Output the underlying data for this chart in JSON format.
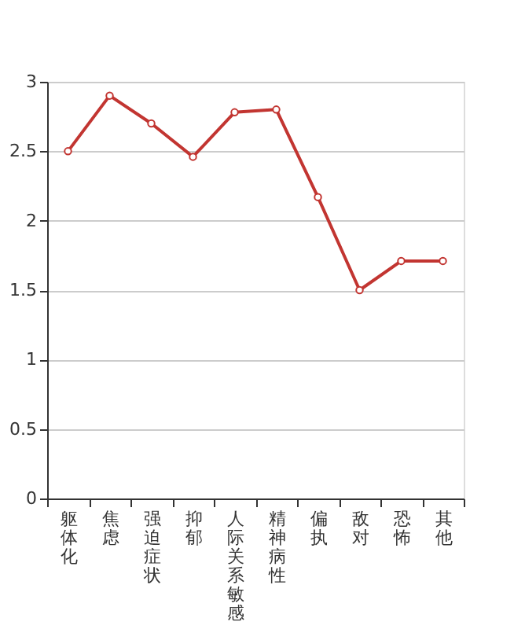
{
  "chart_data": {
    "type": "line",
    "categories": [
      "躯体化",
      "焦虑",
      "强迫症状",
      "抑郁",
      "人际关系敏感",
      "精神病性",
      "偏执",
      "敌对",
      "恐怖",
      "其他"
    ],
    "series": [
      {
        "color": "#c23531",
        "values": [
          2.5,
          2.9,
          2.7,
          2.46,
          2.78,
          2.8,
          2.17,
          1.5,
          1.71,
          1.71
        ]
      }
    ],
    "ylim": [
      0,
      3
    ],
    "yticks": [
      0,
      0.5,
      1,
      1.5,
      2,
      2.5,
      3
    ],
    "grid": "y",
    "marker": "circle",
    "line_style": "solid"
  }
}
